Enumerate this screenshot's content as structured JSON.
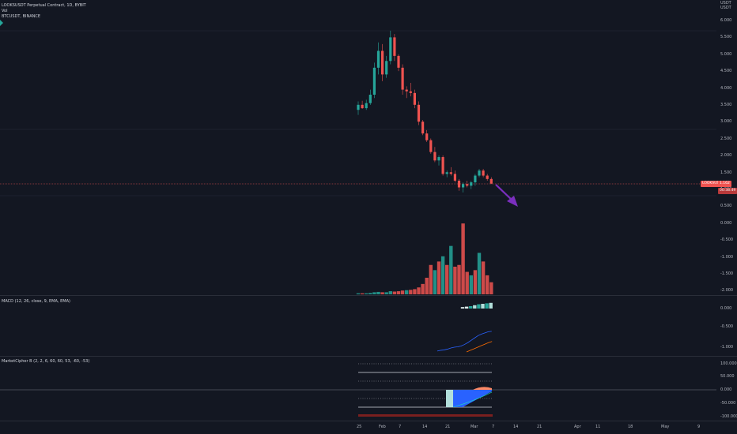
{
  "main_pane": {
    "symbol_title": "LOOKSUSDT Perpetual Contract, 1D, BYBIT",
    "vol_label": "Vol",
    "overlay_label": "BTCUSDT, BINANCE",
    "currency_label": "USDT",
    "currency_label2": "USDT",
    "y_ticks": [
      "6.000",
      "5.500",
      "5.000",
      "4.500",
      "4.000",
      "3.500",
      "3.000",
      "2.500",
      "2.000",
      "1.500",
      "1.000",
      "0.500",
      "0.000",
      "-0.500",
      "-1.000",
      "-1.500",
      "-2.000"
    ],
    "price_tag": "LOOKSUSDT",
    "price_value": "1.162",
    "countdown": "00:38:49"
  },
  "macd_pane": {
    "label": "MACD (12, 26, close, 9, EMA, EMA)",
    "y_ticks": [
      "0.000",
      "-0.500",
      "-1.000"
    ]
  },
  "cipher_pane": {
    "label": "MarketCipher B (2, 2, 6, 60, 60, 53, -60, -53)",
    "y_ticks": [
      "100.000",
      "50.000",
      "0.000",
      "-50.000",
      "-100.000"
    ]
  },
  "x_axis": {
    "ticks": [
      "25",
      "Feb",
      "7",
      "14",
      "21",
      "Mar",
      "7",
      "14",
      "21",
      "Apr",
      "11",
      "18",
      "May",
      "9"
    ]
  },
  "chart_data": {
    "type": "candlestick",
    "candles": [
      {
        "o": 3.35,
        "h": 3.6,
        "l": 3.2,
        "c": 3.5
      },
      {
        "o": 3.5,
        "h": 3.62,
        "l": 3.38,
        "c": 3.4
      },
      {
        "o": 3.4,
        "h": 3.65,
        "l": 3.35,
        "c": 3.55
      },
      {
        "o": 3.55,
        "h": 3.95,
        "l": 3.5,
        "c": 3.8
      },
      {
        "o": 3.8,
        "h": 4.75,
        "l": 3.7,
        "c": 4.6
      },
      {
        "o": 4.6,
        "h": 5.35,
        "l": 4.4,
        "c": 5.1
      },
      {
        "o": 5.1,
        "h": 5.3,
        "l": 4.2,
        "c": 4.4
      },
      {
        "o": 4.4,
        "h": 4.95,
        "l": 4.3,
        "c": 4.8
      },
      {
        "o": 4.8,
        "h": 5.7,
        "l": 4.7,
        "c": 5.5
      },
      {
        "o": 5.5,
        "h": 5.6,
        "l": 4.8,
        "c": 4.95
      },
      {
        "o": 4.95,
        "h": 5.0,
        "l": 4.5,
        "c": 4.6
      },
      {
        "o": 4.6,
        "h": 4.7,
        "l": 3.8,
        "c": 3.95
      },
      {
        "o": 3.95,
        "h": 4.05,
        "l": 3.7,
        "c": 3.9
      },
      {
        "o": 3.9,
        "h": 4.15,
        "l": 3.75,
        "c": 3.85
      },
      {
        "o": 3.85,
        "h": 3.95,
        "l": 3.4,
        "c": 3.5
      },
      {
        "o": 3.5,
        "h": 3.6,
        "l": 2.9,
        "c": 3.0
      },
      {
        "o": 3.0,
        "h": 3.05,
        "l": 2.6,
        "c": 2.65
      },
      {
        "o": 2.65,
        "h": 2.75,
        "l": 2.4,
        "c": 2.45
      },
      {
        "o": 2.45,
        "h": 2.5,
        "l": 2.05,
        "c": 2.1
      },
      {
        "o": 2.1,
        "h": 2.25,
        "l": 1.8,
        "c": 1.85
      },
      {
        "o": 1.85,
        "h": 2.0,
        "l": 1.7,
        "c": 1.95
      },
      {
        "o": 1.95,
        "h": 2.0,
        "l": 1.4,
        "c": 1.45
      },
      {
        "o": 1.45,
        "h": 1.55,
        "l": 1.35,
        "c": 1.5
      },
      {
        "o": 1.5,
        "h": 1.65,
        "l": 1.4,
        "c": 1.45
      },
      {
        "o": 1.45,
        "h": 1.55,
        "l": 1.2,
        "c": 1.25
      },
      {
        "o": 1.25,
        "h": 1.3,
        "l": 0.95,
        "c": 1.05
      },
      {
        "o": 1.05,
        "h": 1.2,
        "l": 0.9,
        "c": 1.15
      },
      {
        "o": 1.15,
        "h": 1.25,
        "l": 1.05,
        "c": 1.1
      },
      {
        "o": 1.1,
        "h": 1.25,
        "l": 1.0,
        "c": 1.2
      },
      {
        "o": 1.2,
        "h": 1.45,
        "l": 1.1,
        "c": 1.4
      },
      {
        "o": 1.4,
        "h": 1.6,
        "l": 1.35,
        "c": 1.55
      },
      {
        "o": 1.55,
        "h": 1.6,
        "l": 1.35,
        "c": 1.4
      },
      {
        "o": 1.4,
        "h": 1.45,
        "l": 1.25,
        "c": 1.3
      },
      {
        "o": 1.3,
        "h": 1.35,
        "l": 1.15,
        "c": 1.162
      }
    ],
    "volume": [
      {
        "v": 0.03,
        "up": true
      },
      {
        "v": 0.03,
        "up": false
      },
      {
        "v": 0.03,
        "up": true
      },
      {
        "v": 0.04,
        "up": true
      },
      {
        "v": 0.06,
        "up": true
      },
      {
        "v": 0.07,
        "up": true
      },
      {
        "v": 0.06,
        "up": false
      },
      {
        "v": 0.06,
        "up": true
      },
      {
        "v": 0.09,
        "up": true
      },
      {
        "v": 0.08,
        "up": false
      },
      {
        "v": 0.09,
        "up": false
      },
      {
        "v": 0.11,
        "up": false
      },
      {
        "v": 0.12,
        "up": true
      },
      {
        "v": 0.13,
        "up": false
      },
      {
        "v": 0.15,
        "up": false
      },
      {
        "v": 0.2,
        "up": false
      },
      {
        "v": 0.3,
        "up": false
      },
      {
        "v": 0.48,
        "up": false
      },
      {
        "v": 0.85,
        "up": false
      },
      {
        "v": 0.7,
        "up": true
      },
      {
        "v": 0.95,
        "up": false
      },
      {
        "v": 1.1,
        "up": true
      },
      {
        "v": 0.85,
        "up": false
      },
      {
        "v": 1.4,
        "up": true
      },
      {
        "v": 0.8,
        "up": false
      },
      {
        "v": 0.85,
        "up": false
      },
      {
        "v": 2.05,
        "up": false
      },
      {
        "v": 0.65,
        "up": false
      },
      {
        "v": 0.55,
        "up": true
      },
      {
        "v": 0.7,
        "up": false
      },
      {
        "v": 1.2,
        "up": true
      },
      {
        "v": 0.95,
        "up": false
      },
      {
        "v": 0.55,
        "up": false
      },
      {
        "v": 0.35,
        "up": false
      }
    ],
    "macd_hist": [
      0.03,
      0.04,
      0.05,
      0.07,
      0.09,
      0.1,
      0.11,
      0.12
    ],
    "macd_line": [
      -1.1,
      -1.08,
      -1.07,
      -1.05,
      -1.02,
      -1.0,
      -0.99,
      -0.97,
      -0.93,
      -0.88,
      -0.82,
      -0.76,
      -0.7,
      -0.66,
      -0.63,
      -0.6,
      -0.59
    ],
    "signal_line": [
      -1.0,
      -0.96,
      -0.92,
      -0.88,
      -0.84,
      -0.8,
      -0.76,
      -0.73
    ],
    "colors": {
      "up": "#26a69a",
      "down": "#ef5350",
      "vol_up": "#26a69a",
      "vol_down": "#ef5350",
      "macd": "#2962ff",
      "signal": "#ff6d00",
      "arrow": "#7b2fbe",
      "price_line": "#ef5350"
    }
  }
}
